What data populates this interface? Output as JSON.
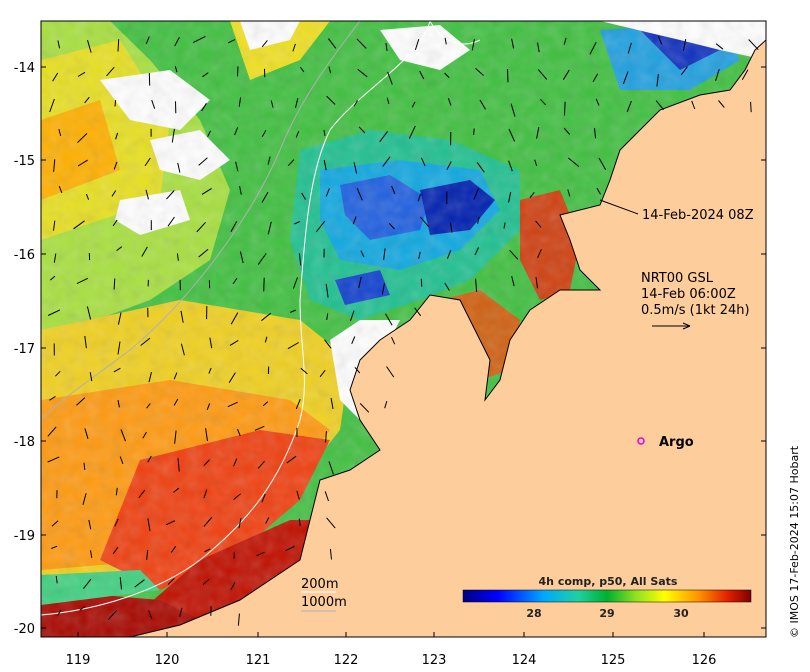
{
  "map": {
    "x_axis": {
      "ticks": [
        "119",
        "120",
        "121",
        "122",
        "123",
        "124",
        "125",
        "126"
      ]
    },
    "y_axis": {
      "ticks": [
        "-14",
        "-15",
        "-16",
        "-17",
        "-18",
        "-19",
        "-20"
      ]
    },
    "timestamp_label": "14-Feb-2024 08Z",
    "currents_legend": {
      "line1": "NRT00 GSL",
      "line2": "14-Feb 06:00Z",
      "line3": "0.5m/s (1kt 24h)"
    },
    "argo_label": "Argo",
    "isobaths": {
      "label_200": "200m",
      "label_1000": "1000m"
    },
    "colorbar": {
      "title": "4h comp, p50, All Sats",
      "ticks": [
        "28",
        "29",
        "30"
      ]
    },
    "credit": "© IMOS 17-Feb-2024 15:07 Hobart",
    "colors": {
      "land": "#fdcd9c",
      "cold": "#00007f",
      "warm": "#7f0000",
      "argo_marker": "#e000e0"
    }
  }
}
